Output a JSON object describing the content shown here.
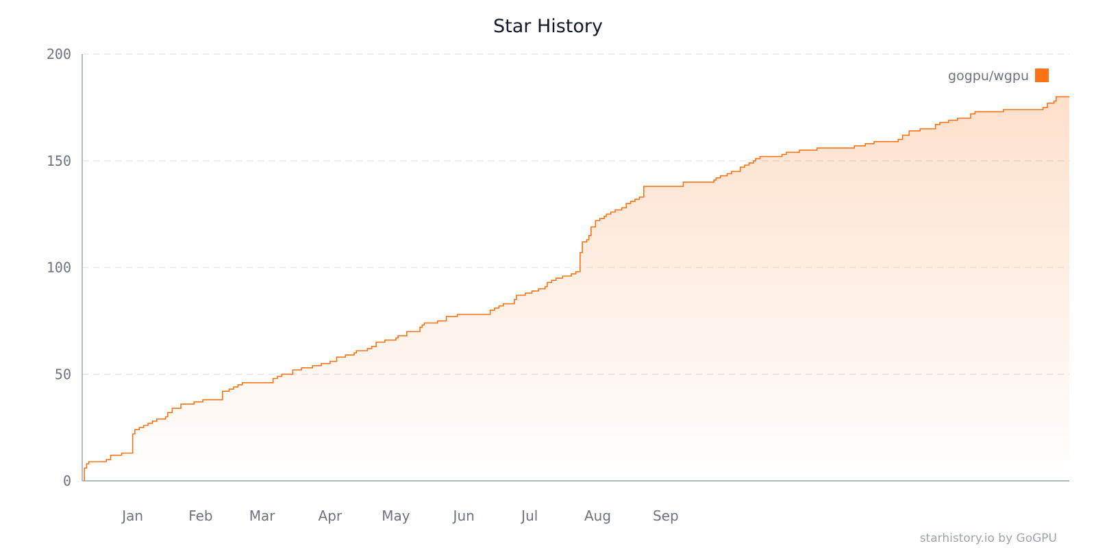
{
  "chart_data": {
    "type": "line",
    "title": "Star History",
    "xlabel": "",
    "ylabel": "",
    "ylim": [
      0,
      200
    ],
    "y_ticks": [
      "0",
      "50",
      "100",
      "150",
      "200"
    ],
    "x_ticks": [
      "Jan",
      "Feb",
      "Mar",
      "Apr",
      "May",
      "Jun",
      "Jul",
      "Aug",
      "Sep"
    ],
    "grid": "horizontal dashed",
    "legend_position": "top-right",
    "series": [
      {
        "name": "gogpu/wgpu",
        "color": "#f97316",
        "step": true,
        "points": [
          [
            "Dec 10",
            0
          ],
          [
            "Dec 10",
            6
          ],
          [
            "Dec 11",
            8
          ],
          [
            "Dec 12",
            9
          ],
          [
            "Dec 20",
            10
          ],
          [
            "Dec 22",
            12
          ],
          [
            "Dec 27",
            13
          ],
          [
            "Jan 1",
            22
          ],
          [
            "Jan 2",
            24
          ],
          [
            "Jan 4",
            25
          ],
          [
            "Jan 6",
            26
          ],
          [
            "Jan 8",
            27
          ],
          [
            "Jan 10",
            28
          ],
          [
            "Jan 12",
            29
          ],
          [
            "Jan 16",
            30
          ],
          [
            "Jan 17",
            32
          ],
          [
            "Jan 19",
            34
          ],
          [
            "Jan 23",
            36
          ],
          [
            "Jan 29",
            37
          ],
          [
            "Feb 2",
            38
          ],
          [
            "Feb 11",
            42
          ],
          [
            "Feb 14",
            43
          ],
          [
            "Feb 16",
            44
          ],
          [
            "Feb 18",
            45
          ],
          [
            "Feb 20",
            46
          ],
          [
            "Mar 6",
            48
          ],
          [
            "Mar 8",
            49
          ],
          [
            "Mar 10",
            50
          ],
          [
            "Mar 15",
            52
          ],
          [
            "Mar 19",
            53
          ],
          [
            "Mar 24",
            54
          ],
          [
            "Mar 28",
            55
          ],
          [
            "Apr 1",
            56
          ],
          [
            "Apr 4",
            58
          ],
          [
            "Apr 8",
            59
          ],
          [
            "Apr 12",
            60
          ],
          [
            "Apr 13",
            61
          ],
          [
            "Apr 18",
            62
          ],
          [
            "Apr 20",
            63
          ],
          [
            "Apr 22",
            65
          ],
          [
            "Apr 26",
            66
          ],
          [
            "May 1",
            67
          ],
          [
            "May 2",
            68
          ],
          [
            "May 6",
            70
          ],
          [
            "May 12",
            72
          ],
          [
            "May 13",
            73
          ],
          [
            "May 14",
            74
          ],
          [
            "May 20",
            75
          ],
          [
            "May 24",
            77
          ],
          [
            "May 29",
            78
          ],
          [
            "Jun 13",
            80
          ],
          [
            "Jun 15",
            81
          ],
          [
            "Jun 17",
            82
          ],
          [
            "Jun 19",
            83
          ],
          [
            "Jun 24",
            85
          ],
          [
            "Jun 25",
            87
          ],
          [
            "Jun 29",
            88
          ],
          [
            "Jul 2",
            89
          ],
          [
            "Jul 5",
            90
          ],
          [
            "Jul 8",
            91
          ],
          [
            "Jul 9",
            93
          ],
          [
            "Jul 11",
            94
          ],
          [
            "Jul 13",
            95
          ],
          [
            "Jul 16",
            96
          ],
          [
            "Jul 20",
            97
          ],
          [
            "Jul 22",
            98
          ],
          [
            "Jul 24",
            107
          ],
          [
            "Jul 25",
            112
          ],
          [
            "Jul 27",
            113
          ],
          [
            "Jul 28",
            115
          ],
          [
            "Jul 29",
            119
          ],
          [
            "Jul 31",
            122
          ],
          [
            "Aug 2",
            123
          ],
          [
            "Aug 4",
            124
          ],
          [
            "Aug 5",
            125
          ],
          [
            "Aug 7",
            126
          ],
          [
            "Aug 9",
            127
          ],
          [
            "Aug 12",
            128
          ],
          [
            "Aug 14",
            130
          ],
          [
            "Aug 16",
            131
          ],
          [
            "Aug 18",
            132
          ],
          [
            "Aug 20",
            133
          ],
          [
            "Aug 22",
            138
          ],
          [
            "Sep 9",
            140
          ],
          [
            "Sep 23",
            141
          ],
          [
            "Sep 24",
            142
          ],
          [
            "Sep 26",
            143
          ],
          [
            "Sep 29",
            144
          ],
          [
            "Oct 1",
            145
          ],
          [
            "Oct 5",
            147
          ],
          [
            "Oct 7",
            148
          ],
          [
            "Oct 9",
            149
          ],
          [
            "Oct 11",
            150
          ],
          [
            "Oct 12",
            151
          ],
          [
            "Oct 14",
            152
          ],
          [
            "Oct 24",
            153
          ],
          [
            "Oct 26",
            154
          ],
          [
            "Nov 1",
            155
          ],
          [
            "Nov 9",
            156
          ],
          [
            "Nov 26",
            157
          ],
          [
            "Dec 1",
            158
          ],
          [
            "Dec 5",
            159
          ],
          [
            "Dec 16",
            160
          ],
          [
            "Dec 18",
            162
          ],
          [
            "Dec 21",
            164
          ],
          [
            "Dec 26",
            165
          ],
          [
            "Jan 2",
            167
          ],
          [
            "Jan 4",
            168
          ],
          [
            "Jan 8",
            169
          ],
          [
            "Jan 12",
            170
          ],
          [
            "Jan 18",
            172
          ],
          [
            "Jan 20",
            173
          ],
          [
            "Feb 2",
            174
          ],
          [
            "Feb 20",
            175
          ],
          [
            "Feb 22",
            177
          ],
          [
            "Feb 25",
            178
          ],
          [
            "Feb 26",
            180
          ],
          [
            "Mar 4",
            180
          ]
        ]
      }
    ]
  },
  "credit": "starhistory.io by GoGPU"
}
